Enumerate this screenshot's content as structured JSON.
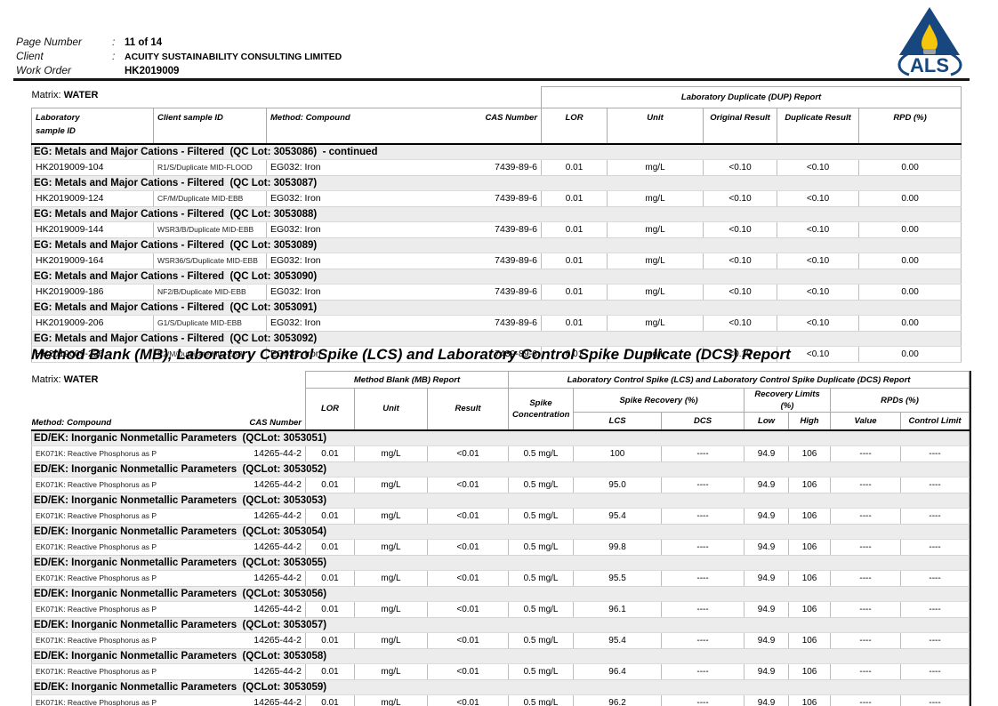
{
  "page_header": {
    "rows": [
      {
        "label": "Page Number",
        "colon": ":",
        "value": "11 of 14"
      },
      {
        "label": "Client",
        "colon": ":",
        "value": "ACUITY SUSTAINABILITY CONSULTING LIMITED"
      },
      {
        "label": "Work Order",
        "colon": "",
        "value": "HK2019009"
      }
    ],
    "logo": {
      "text": "ALS",
      "triangle_color": "#17477e",
      "flame_color": "#f6c60d",
      "burner_color": "#9aa3ab"
    }
  },
  "dup_table": {
    "matrix_label": "Matrix:",
    "matrix_value": "WATER",
    "group_header": "Laboratory Duplicate (DUP) Report",
    "columns": {
      "laboratory_sample_id": "Laboratory\nsample ID",
      "client_sample_id": "Client sample ID",
      "method_compound": "Method: Compound",
      "cas_number": "CAS Number",
      "lor": "LOR",
      "unit": "Unit",
      "original_result": "Original Result",
      "duplicate_result": "Duplicate Result",
      "rpd": "RPD (%)"
    },
    "groups": [
      {
        "title": "EG: Metals and Major Cations - Filtered  (QC Lot: 3053086)  - continued",
        "rows": [
          {
            "lab_id": "HK2019009-104",
            "client_id": "R1/S/Duplicate MID-FLOOD",
            "method": "EG032: Iron",
            "cas": "7439-89-6",
            "lor": "0.01",
            "unit": "mg/L",
            "original": "<0.10",
            "duplicate": "<0.10",
            "rpd": "0.00"
          }
        ]
      },
      {
        "title": "EG: Metals and Major Cations - Filtered  (QC Lot: 3053087)",
        "rows": [
          {
            "lab_id": "HK2019009-124",
            "client_id": "CF/M/Duplicate MID-EBB",
            "method": "EG032: Iron",
            "cas": "7439-89-6",
            "lor": "0.01",
            "unit": "mg/L",
            "original": "<0.10",
            "duplicate": "<0.10",
            "rpd": "0.00"
          }
        ]
      },
      {
        "title": "EG: Metals and Major Cations - Filtered  (QC Lot: 3053088)",
        "rows": [
          {
            "lab_id": "HK2019009-144",
            "client_id": "WSR3/B/Duplicate MID-EBB",
            "method": "EG032: Iron",
            "cas": "7439-89-6",
            "lor": "0.01",
            "unit": "mg/L",
            "original": "<0.10",
            "duplicate": "<0.10",
            "rpd": "0.00"
          }
        ]
      },
      {
        "title": "EG: Metals and Major Cations - Filtered  (QC Lot: 3053089)",
        "rows": [
          {
            "lab_id": "HK2019009-164",
            "client_id": "WSR36/S/Duplicate MID-EBB",
            "method": "EG032: Iron",
            "cas": "7439-89-6",
            "lor": "0.01",
            "unit": "mg/L",
            "original": "<0.10",
            "duplicate": "<0.10",
            "rpd": "0.00"
          }
        ]
      },
      {
        "title": "EG: Metals and Major Cations - Filtered  (QC Lot: 3053090)",
        "rows": [
          {
            "lab_id": "HK2019009-186",
            "client_id": "NF2/B/Duplicate MID-EBB",
            "method": "EG032: Iron",
            "cas": "7439-89-6",
            "lor": "0.01",
            "unit": "mg/L",
            "original": "<0.10",
            "duplicate": "<0.10",
            "rpd": "0.00"
          }
        ]
      },
      {
        "title": "EG: Metals and Major Cations - Filtered  (QC Lot: 3053091)",
        "rows": [
          {
            "lab_id": "HK2019009-206",
            "client_id": "G1/S/Duplicate MID-EBB",
            "method": "EG032: Iron",
            "cas": "7439-89-6",
            "lor": "0.01",
            "unit": "mg/L",
            "original": "<0.10",
            "duplicate": "<0.10",
            "rpd": "0.00"
          }
        ]
      },
      {
        "title": "EG: Metals and Major Cations - Filtered  (QC Lot: 3053092)",
        "rows": [
          {
            "lab_id": "HK2019009-226",
            "client_id": "R2/M/Duplicate MID-EBB",
            "method": "EG032: Iron",
            "cas": "7439-89-6",
            "lor": "0.01",
            "unit": "mg/L",
            "original": "<0.10",
            "duplicate": "<0.10",
            "rpd": "0.00"
          }
        ]
      }
    ]
  },
  "section_title": "Method Blank (MB), Laboratory Control Spike (LCS) and Laboratory Control Spike Duplicate (DCS) Report",
  "mb_table": {
    "matrix_label": "Matrix:",
    "matrix_value": "WATER",
    "mb_group_header": "Method Blank (MB) Report",
    "lcs_group_header": "Laboratory Control Spike (LCS) and Laboratory Control Spike Duplicate (DCS) Report",
    "columns": {
      "method_compound": "Method: Compound",
      "cas_number": "CAS Number",
      "lor": "LOR",
      "unit": "Unit",
      "result": "Result",
      "spike_concentration": "Spike\nConcentration",
      "spike_recovery": "Spike Recovery (%)",
      "lcs": "LCS",
      "dcs": "DCS",
      "recovery_limits": "Recovery Limits (%)",
      "low": "Low",
      "high": "High",
      "rpds": "RPDs (%)",
      "value": "Value",
      "control_limit": "Control Limit"
    },
    "groups": [
      {
        "title": "ED/EK: Inorganic Nonmetallic Parameters  (QCLot: 3053051)",
        "rows": [
          {
            "compound": "EK071K: Reactive Phosphorus as P",
            "cas": "14265-44-2",
            "lor": "0.01",
            "unit": "mg/L",
            "result": "<0.01",
            "spike_conc": "0.5 mg/L",
            "lcs": "100",
            "dcs": "----",
            "low": "94.9",
            "high": "106",
            "value": "----",
            "control_limit": "----"
          }
        ]
      },
      {
        "title": "ED/EK: Inorganic Nonmetallic Parameters  (QCLot: 3053052)",
        "rows": [
          {
            "compound": "EK071K: Reactive Phosphorus as P",
            "cas": "14265-44-2",
            "lor": "0.01",
            "unit": "mg/L",
            "result": "<0.01",
            "spike_conc": "0.5 mg/L",
            "lcs": "95.0",
            "dcs": "----",
            "low": "94.9",
            "high": "106",
            "value": "----",
            "control_limit": "----"
          }
        ]
      },
      {
        "title": "ED/EK: Inorganic Nonmetallic Parameters  (QCLot: 3053053)",
        "rows": [
          {
            "compound": "EK071K: Reactive Phosphorus as P",
            "cas": "14265-44-2",
            "lor": "0.01",
            "unit": "mg/L",
            "result": "<0.01",
            "spike_conc": "0.5 mg/L",
            "lcs": "95.4",
            "dcs": "----",
            "low": "94.9",
            "high": "106",
            "value": "----",
            "control_limit": "----"
          }
        ]
      },
      {
        "title": "ED/EK: Inorganic Nonmetallic Parameters  (QCLot: 3053054)",
        "rows": [
          {
            "compound": "EK071K: Reactive Phosphorus as P",
            "cas": "14265-44-2",
            "lor": "0.01",
            "unit": "mg/L",
            "result": "<0.01",
            "spike_conc": "0.5 mg/L",
            "lcs": "99.8",
            "dcs": "----",
            "low": "94.9",
            "high": "106",
            "value": "----",
            "control_limit": "----"
          }
        ]
      },
      {
        "title": "ED/EK: Inorganic Nonmetallic Parameters  (QCLot: 3053055)",
        "rows": [
          {
            "compound": "EK071K: Reactive Phosphorus as P",
            "cas": "14265-44-2",
            "lor": "0.01",
            "unit": "mg/L",
            "result": "<0.01",
            "spike_conc": "0.5 mg/L",
            "lcs": "95.5",
            "dcs": "----",
            "low": "94.9",
            "high": "106",
            "value": "----",
            "control_limit": "----"
          }
        ]
      },
      {
        "title": "ED/EK: Inorganic Nonmetallic Parameters  (QCLot: 3053056)",
        "rows": [
          {
            "compound": "EK071K: Reactive Phosphorus as P",
            "cas": "14265-44-2",
            "lor": "0.01",
            "unit": "mg/L",
            "result": "<0.01",
            "spike_conc": "0.5 mg/L",
            "lcs": "96.1",
            "dcs": "----",
            "low": "94.9",
            "high": "106",
            "value": "----",
            "control_limit": "----"
          }
        ]
      },
      {
        "title": "ED/EK: Inorganic Nonmetallic Parameters  (QCLot: 3053057)",
        "rows": [
          {
            "compound": "EK071K: Reactive Phosphorus as P",
            "cas": "14265-44-2",
            "lor": "0.01",
            "unit": "mg/L",
            "result": "<0.01",
            "spike_conc": "0.5 mg/L",
            "lcs": "95.4",
            "dcs": "----",
            "low": "94.9",
            "high": "106",
            "value": "----",
            "control_limit": "----"
          }
        ]
      },
      {
        "title": "ED/EK: Inorganic Nonmetallic Parameters  (QCLot: 3053058)",
        "rows": [
          {
            "compound": "EK071K: Reactive Phosphorus as P",
            "cas": "14265-44-2",
            "lor": "0.01",
            "unit": "mg/L",
            "result": "<0.01",
            "spike_conc": "0.5 mg/L",
            "lcs": "96.4",
            "dcs": "----",
            "low": "94.9",
            "high": "106",
            "value": "----",
            "control_limit": "----"
          }
        ]
      },
      {
        "title": "ED/EK: Inorganic Nonmetallic Parameters  (QCLot: 3053059)",
        "rows": [
          {
            "compound": "EK071K: Reactive Phosphorus as P",
            "cas": "14265-44-2",
            "lor": "0.01",
            "unit": "mg/L",
            "result": "<0.01",
            "spike_conc": "0.5 mg/L",
            "lcs": "96.2",
            "dcs": "----",
            "low": "94.9",
            "high": "106",
            "value": "----",
            "control_limit": "----"
          }
        ]
      }
    ]
  }
}
